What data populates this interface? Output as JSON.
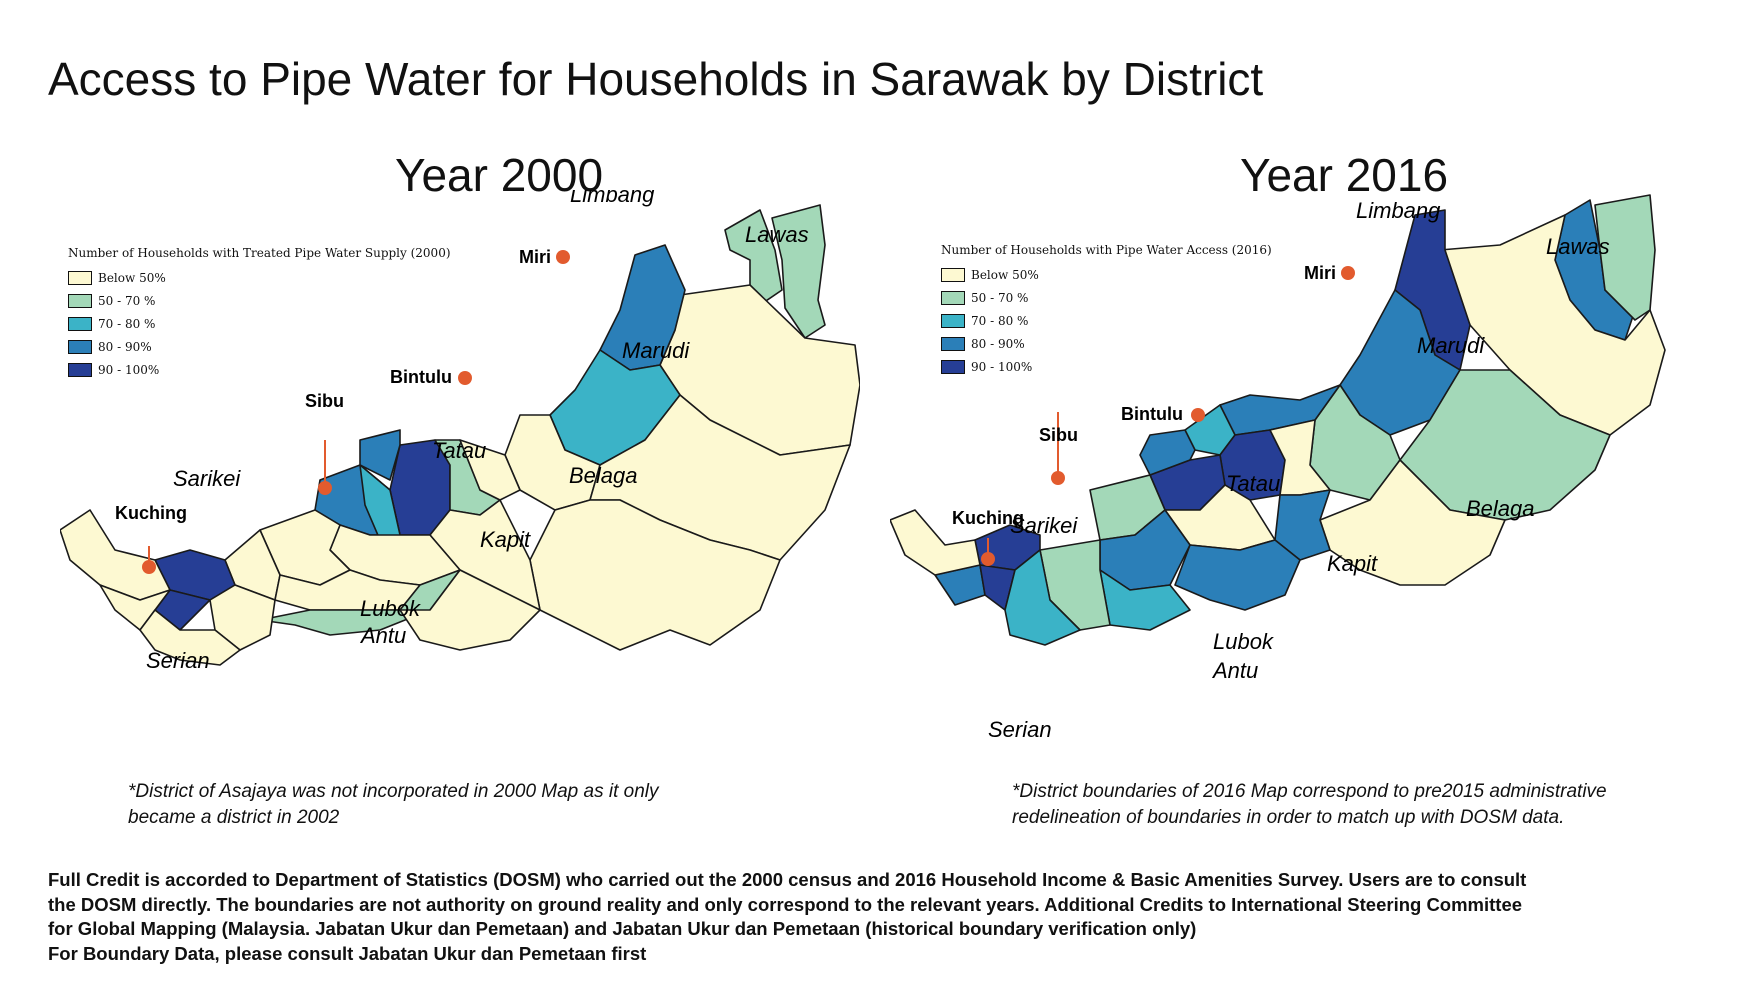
{
  "title": "Access to Pipe Water for Households in Sarawak by District",
  "colors": {
    "below_50": "#fdf9d2",
    "50_70": "#a3d8b8",
    "70_80": "#3bb3c7",
    "80_90": "#2b7fb8",
    "90_100": "#263e95",
    "city_marker": "#e25b2e",
    "border": "#1a1a1a"
  },
  "maps": [
    {
      "year_title": "Year 2000",
      "legend": {
        "title": "Number of Households with Treated Pipe Water Supply (2000)",
        "items": [
          {
            "label": "Below 50%",
            "color": "#fdf9d2"
          },
          {
            "label": "50 - 70 %",
            "color": "#a3d8b8"
          },
          {
            "label": "70 - 80 %",
            "color": "#3bb3c7"
          },
          {
            "label": "80 - 90%",
            "color": "#2b7fb8"
          },
          {
            "label": "90 - 100%",
            "color": "#263e95"
          }
        ]
      },
      "cities": [
        "Miri",
        "Bintulu",
        "Sibu",
        "Kuching"
      ],
      "districts": [
        "Limbang",
        "Lawas",
        "Marudi",
        "Tatau",
        "Belaga",
        "Sarikei",
        "Kapit",
        "Lubok",
        "Antu",
        "Serian"
      ],
      "note": [
        "*District of Asajaya was not incorporated in 2000 Map as it only",
        "became a district in 2002"
      ]
    },
    {
      "year_title": "Year 2016",
      "legend": {
        "title": "Number of Households with Pipe Water Access (2016)",
        "items": [
          {
            "label": "Below 50%",
            "color": "#fdf9d2"
          },
          {
            "label": "50 - 70 %",
            "color": "#a3d8b8"
          },
          {
            "label": "70 - 80 %",
            "color": "#3bb3c7"
          },
          {
            "label": "80 - 90%",
            "color": "#2b7fb8"
          },
          {
            "label": "90 - 100%",
            "color": "#263e95"
          }
        ]
      },
      "cities": [
        "Miri",
        "Bintulu",
        "Sibu",
        "Kuching"
      ],
      "districts": [
        "Limbang",
        "Lawas",
        "Marudi",
        "Tatau",
        "Belaga",
        "Sarikei",
        "Kapit",
        "Lubok",
        "Antu",
        "Serian"
      ],
      "note": [
        "*District boundaries of 2016 Map correspond to pre2015 administrative",
        "redelineation of boundaries in order to match up with DOSM data."
      ]
    }
  ],
  "credits": [
    "Full Credit is accorded to Department of Statistics (DOSM) who carried out the 2000 census and 2016 Household Income & Basic Amenities Survey. Users are to consult",
    "the DOSM directly. The boundaries are not authority on ground reality and only correspond to the relevant years. Additional Credits to International Steering Committee",
    "for Global Mapping (Malaysia. Jabatan Ukur dan Pemetaan) and Jabatan Ukur dan Pemetaan (historical boundary verification only)",
    "For Boundary Data, please consult Jabatan Ukur dan Pemetaan first"
  ]
}
